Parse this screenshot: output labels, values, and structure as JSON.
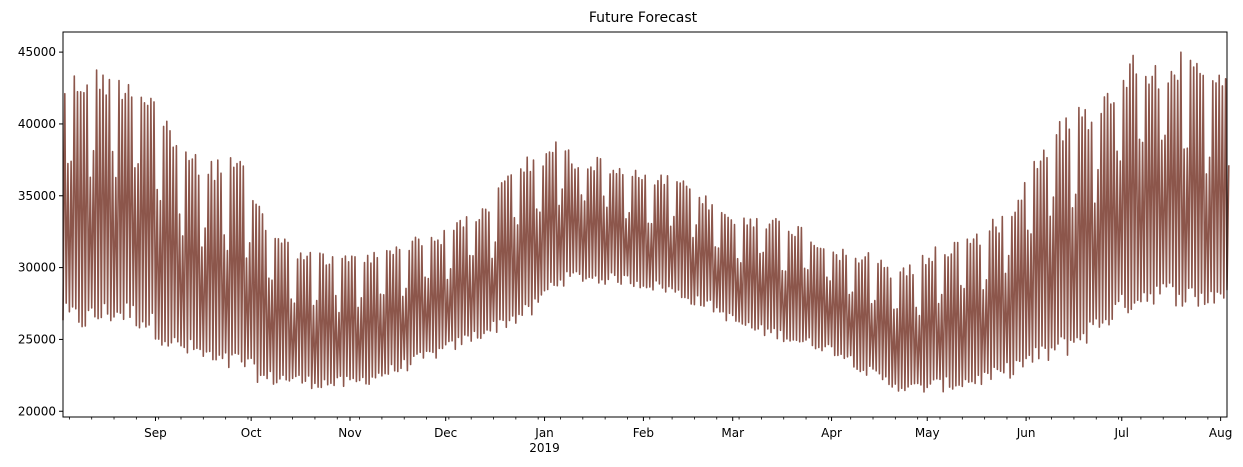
{
  "chart_data": {
    "type": "line",
    "title": "Future Forecast",
    "xlabel": "",
    "ylabel": "",
    "xlim": [
      "2018-08-03",
      "2019-08-03"
    ],
    "ylim": [
      19600,
      46400
    ],
    "grid": false,
    "legend": "none",
    "yticks": [
      20000,
      25000,
      30000,
      35000,
      40000,
      45000
    ],
    "ytick_labels": [
      "20000",
      "25000",
      "30000",
      "35000",
      "40000",
      "45000"
    ],
    "xticks": [
      "2018-09-01",
      "2018-10-01",
      "2018-11-01",
      "2018-12-01",
      "2019-01-01",
      "2019-02-01",
      "2019-03-01",
      "2019-04-01",
      "2019-05-01",
      "2019-06-01",
      "2019-07-01",
      "2019-08-01"
    ],
    "xtick_labels": [
      "Sep",
      "Oct",
      "Nov",
      "Dec",
      "Jan",
      "Feb",
      "Mar",
      "Apr",
      "May",
      "Jun",
      "Jul",
      "Aug"
    ],
    "year_label": "2019",
    "series": [
      {
        "color": "#8c564b",
        "sampling": "daily min/max (hourly forecast envelope)",
        "x": [
          "2018-08-03",
          "2018-08-10",
          "2018-08-17",
          "2018-08-24",
          "2018-08-31",
          "2018-09-07",
          "2018-09-14",
          "2018-09-21",
          "2018-09-28",
          "2018-10-05",
          "2018-10-12",
          "2018-10-19",
          "2018-10-26",
          "2018-11-02",
          "2018-11-09",
          "2018-11-16",
          "2018-11-23",
          "2018-11-30",
          "2018-12-07",
          "2018-12-14",
          "2018-12-21",
          "2018-12-28",
          "2019-01-04",
          "2019-01-11",
          "2019-01-18",
          "2019-01-25",
          "2019-02-01",
          "2019-02-08",
          "2019-02-15",
          "2019-02-22",
          "2019-03-01",
          "2019-03-08",
          "2019-03-15",
          "2019-03-22",
          "2019-03-29",
          "2019-04-05",
          "2019-04-12",
          "2019-04-19",
          "2019-04-26",
          "2019-05-03",
          "2019-05-10",
          "2019-05-17",
          "2019-05-24",
          "2019-05-31",
          "2019-06-07",
          "2019-06-14",
          "2019-06-21",
          "2019-06-28",
          "2019-07-05",
          "2019-07-12",
          "2019-07-19",
          "2019-07-26",
          "2019-08-03"
        ],
        "low": [
          25800,
          25500,
          26000,
          26000,
          25200,
          23800,
          23500,
          22600,
          22800,
          21700,
          21800,
          21600,
          21500,
          21500,
          22000,
          22500,
          23200,
          23800,
          24500,
          25200,
          25800,
          26500,
          28500,
          29000,
          28800,
          28800,
          28500,
          28200,
          27500,
          27000,
          26000,
          25300,
          25000,
          24500,
          24200,
          23600,
          22400,
          21600,
          21100,
          21300,
          21400,
          21700,
          22000,
          22700,
          23200,
          23800,
          24800,
          26000,
          27000,
          27500,
          27300,
          27000,
          27500
        ],
        "high": [
          43500,
          44000,
          44000,
          43600,
          42400,
          39500,
          38000,
          37800,
          37800,
          33500,
          32200,
          31200,
          31000,
          31100,
          31200,
          32300,
          32300,
          32600,
          33900,
          34400,
          37600,
          37800,
          39100,
          37700,
          37700,
          37200,
          36700,
          36400,
          35900,
          34700,
          33700,
          33800,
          33500,
          33000,
          31700,
          31200,
          31100,
          30200,
          30400,
          31700,
          32000,
          32800,
          33800,
          36500,
          39400,
          41200,
          41500,
          43400,
          45200,
          44400,
          45000,
          44200,
          43700
        ]
      }
    ]
  }
}
